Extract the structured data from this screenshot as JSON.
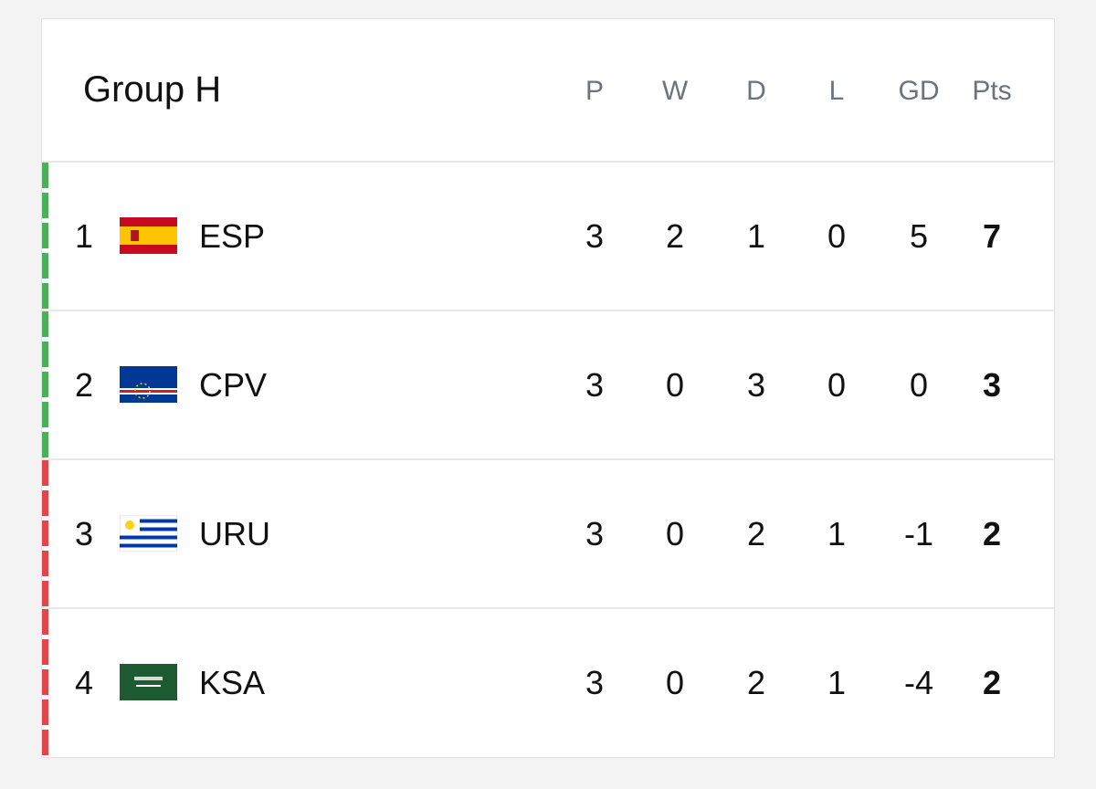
{
  "header": {
    "title": "Group H"
  },
  "table": {
    "columns": [
      "P",
      "W",
      "D",
      "L",
      "GD",
      "Pts"
    ],
    "rows": [
      {
        "rank": 1,
        "team": "ESP",
        "cells": [
          3,
          2,
          1,
          0,
          5,
          7
        ]
      },
      {
        "rank": 2,
        "team": "CPV",
        "cells": [
          3,
          0,
          3,
          0,
          0,
          3
        ]
      },
      {
        "rank": 3,
        "team": "URU",
        "cells": [
          3,
          0,
          2,
          1,
          -1,
          2
        ]
      },
      {
        "rank": 4,
        "team": "KSA",
        "cells": [
          3,
          0,
          2,
          1,
          -4,
          2
        ]
      }
    ]
  }
}
